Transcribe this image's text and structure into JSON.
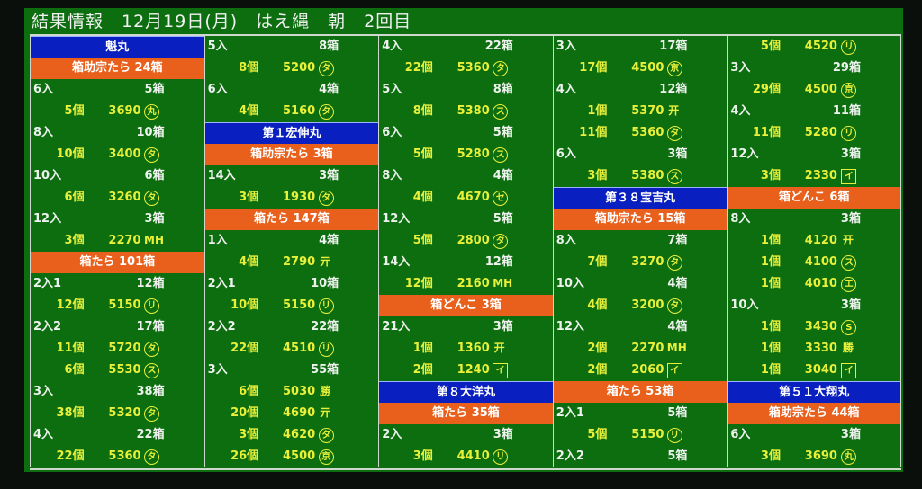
{
  "title": "結果情報　12月19日(月)　はえ縄　朝　2回目",
  "colors": {
    "board": "#0d6e10",
    "ship_header": "#0a1fbf",
    "category_header": "#e8601c",
    "item_text": "#e8f03a",
    "head_text": "#eef2ee"
  },
  "columns": [
    [
      [
        "s",
        "魁丸"
      ],
      [
        "c",
        "箱助宗たら 24箱"
      ],
      [
        "h",
        "6入",
        "5箱"
      ],
      [
        "i",
        "5個",
        "3690",
        "丸",
        "circle"
      ],
      [
        "h",
        "8入",
        "10箱"
      ],
      [
        "i",
        "10個",
        "3400",
        "タ",
        "circle"
      ],
      [
        "h",
        "10入",
        "6箱"
      ],
      [
        "i",
        "6個",
        "3260",
        "タ",
        "circle"
      ],
      [
        "h",
        "12入",
        "3箱"
      ],
      [
        "i",
        "3個",
        "2270",
        "MH",
        "plain"
      ],
      [
        "c",
        "箱たら 101箱"
      ],
      [
        "h",
        "2入1",
        "12箱"
      ],
      [
        "i",
        "12個",
        "5150",
        "リ",
        "circle"
      ],
      [
        "h",
        "2入2",
        "17箱"
      ],
      [
        "i",
        "11個",
        "5720",
        "タ",
        "circle"
      ],
      [
        "i",
        "6個",
        "5530",
        "ス",
        "circle"
      ],
      [
        "h",
        "3入",
        "38箱"
      ],
      [
        "i",
        "38個",
        "5320",
        "タ",
        "circle"
      ],
      [
        "h",
        "4入",
        "22箱"
      ],
      [
        "i",
        "22個",
        "5360",
        "タ",
        "circle"
      ]
    ],
    [
      [
        "h",
        "5入",
        "8箱"
      ],
      [
        "i",
        "8個",
        "5200",
        "タ",
        "circle"
      ],
      [
        "h",
        "6入",
        "4箱"
      ],
      [
        "i",
        "4個",
        "5160",
        "タ",
        "circle"
      ],
      [
        "s",
        "第１宏伸丸"
      ],
      [
        "c",
        "箱助宗たら 3箱"
      ],
      [
        "h",
        "14入",
        "3箱"
      ],
      [
        "i",
        "3個",
        "1930",
        "タ",
        "circle"
      ],
      [
        "c",
        "箱たら 147箱"
      ],
      [
        "h",
        "1入",
        "4箱"
      ],
      [
        "i",
        "4個",
        "2790",
        "亓",
        "plain"
      ],
      [
        "h",
        "2入1",
        "10箱"
      ],
      [
        "i",
        "10個",
        "5150",
        "リ",
        "circle"
      ],
      [
        "h",
        "2入2",
        "22箱"
      ],
      [
        "i",
        "22個",
        "4510",
        "リ",
        "circle"
      ],
      [
        "h",
        "3入",
        "55箱"
      ],
      [
        "i",
        "6個",
        "5030",
        "勝",
        "plain"
      ],
      [
        "i",
        "20個",
        "4690",
        "亓",
        "plain"
      ],
      [
        "i",
        "3個",
        "4620",
        "タ",
        "circle"
      ],
      [
        "i",
        "26個",
        "4500",
        "京",
        "circle"
      ]
    ],
    [
      [
        "h",
        "4入",
        "22箱"
      ],
      [
        "i",
        "22個",
        "5360",
        "タ",
        "circle"
      ],
      [
        "h",
        "5入",
        "8箱"
      ],
      [
        "i",
        "8個",
        "5380",
        "ス",
        "circle"
      ],
      [
        "h",
        "6入",
        "5箱"
      ],
      [
        "i",
        "5個",
        "5280",
        "ス",
        "circle"
      ],
      [
        "h",
        "8入",
        "4箱"
      ],
      [
        "i",
        "4個",
        "4670",
        "セ",
        "circle"
      ],
      [
        "h",
        "12入",
        "5箱"
      ],
      [
        "i",
        "5個",
        "2800",
        "タ",
        "circle"
      ],
      [
        "h",
        "14入",
        "12箱"
      ],
      [
        "i",
        "12個",
        "2160",
        "MH",
        "plain"
      ],
      [
        "c",
        "箱どんこ 3箱"
      ],
      [
        "h",
        "21入",
        "3箱"
      ],
      [
        "i",
        "1個",
        "1360",
        "开",
        "plain"
      ],
      [
        "i",
        "2個",
        "1240",
        "イ",
        "square"
      ],
      [
        "s",
        "第８大洋丸"
      ],
      [
        "c",
        "箱たら 35箱"
      ],
      [
        "h",
        "2入",
        "3箱"
      ],
      [
        "i",
        "3個",
        "4410",
        "リ",
        "circle"
      ]
    ],
    [
      [
        "h",
        "3入",
        "17箱"
      ],
      [
        "i",
        "17個",
        "4500",
        "京",
        "circle"
      ],
      [
        "h",
        "4入",
        "12箱"
      ],
      [
        "i",
        "1個",
        "5370",
        "开",
        "plain"
      ],
      [
        "i",
        "11個",
        "5360",
        "タ",
        "circle"
      ],
      [
        "h",
        "6入",
        "3箱"
      ],
      [
        "i",
        "3個",
        "5380",
        "ス",
        "circle"
      ],
      [
        "s",
        "第３８宝吉丸"
      ],
      [
        "c",
        "箱助宗たら 15箱"
      ],
      [
        "h",
        "8入",
        "7箱"
      ],
      [
        "i",
        "7個",
        "3270",
        "タ",
        "circle"
      ],
      [
        "h",
        "10入",
        "4箱"
      ],
      [
        "i",
        "4個",
        "3200",
        "タ",
        "circle"
      ],
      [
        "h",
        "12入",
        "4箱"
      ],
      [
        "i",
        "2個",
        "2270",
        "MH",
        "plain"
      ],
      [
        "i",
        "2個",
        "2060",
        "イ",
        "square"
      ],
      [
        "c",
        "箱たら 53箱"
      ],
      [
        "h",
        "2入1",
        "5箱"
      ],
      [
        "i",
        "5個",
        "5150",
        "リ",
        "circle"
      ],
      [
        "h",
        "2入2",
        "5箱"
      ]
    ],
    [
      [
        "i",
        "5個",
        "4520",
        "リ",
        "circle"
      ],
      [
        "h",
        "3入",
        "29箱"
      ],
      [
        "i",
        "29個",
        "4500",
        "京",
        "circle"
      ],
      [
        "h",
        "4入",
        "11箱"
      ],
      [
        "i",
        "11個",
        "5280",
        "リ",
        "circle"
      ],
      [
        "h",
        "12入",
        "3箱"
      ],
      [
        "i",
        "3個",
        "2330",
        "イ",
        "square"
      ],
      [
        "c",
        "箱どんこ 6箱"
      ],
      [
        "h",
        "8入",
        "3箱"
      ],
      [
        "i",
        "1個",
        "4120",
        "开",
        "plain"
      ],
      [
        "i",
        "1個",
        "4100",
        "ス",
        "circle"
      ],
      [
        "i",
        "1個",
        "4010",
        "エ",
        "circle"
      ],
      [
        "h",
        "10入",
        "3箱"
      ],
      [
        "i",
        "1個",
        "3430",
        "S",
        "circle"
      ],
      [
        "i",
        "1個",
        "3330",
        "勝",
        "plain"
      ],
      [
        "i",
        "1個",
        "3040",
        "イ",
        "square"
      ],
      [
        "s",
        "第５１大翔丸"
      ],
      [
        "c",
        "箱助宗たら 44箱"
      ],
      [
        "h",
        "6入",
        "3箱"
      ],
      [
        "i",
        "3個",
        "3690",
        "丸",
        "circle"
      ]
    ]
  ]
}
